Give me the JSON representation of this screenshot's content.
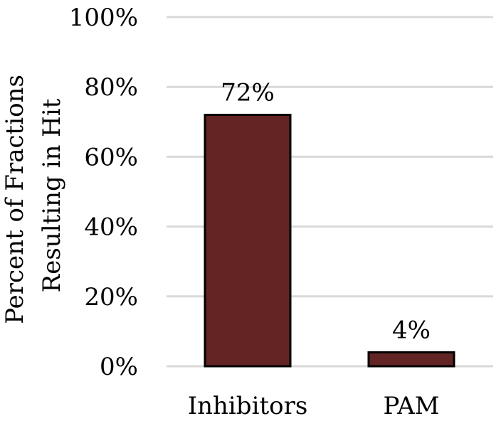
{
  "chart_data": {
    "type": "bar",
    "categories": [
      "Inhibitors",
      "PAM"
    ],
    "values": [
      72,
      4
    ],
    "value_labels": [
      "72%",
      "4%"
    ],
    "ylabel": "Percent of Fractions Resulting in Hit",
    "ylabel_lines": [
      "Percent of Fractions",
      "Resulting in Hit"
    ],
    "xlabel": "",
    "title": "",
    "ylim": [
      0,
      100
    ],
    "yticks": [
      0,
      20,
      40,
      60,
      80,
      100
    ],
    "ytick_labels": [
      "0%",
      "20%",
      "40%",
      "60%",
      "80%",
      "100%"
    ],
    "grid": true,
    "legend": "none",
    "colors": {
      "bar_fill": "#632523",
      "bar_stroke": "#000000",
      "grid": "#d9d9d9"
    }
  }
}
